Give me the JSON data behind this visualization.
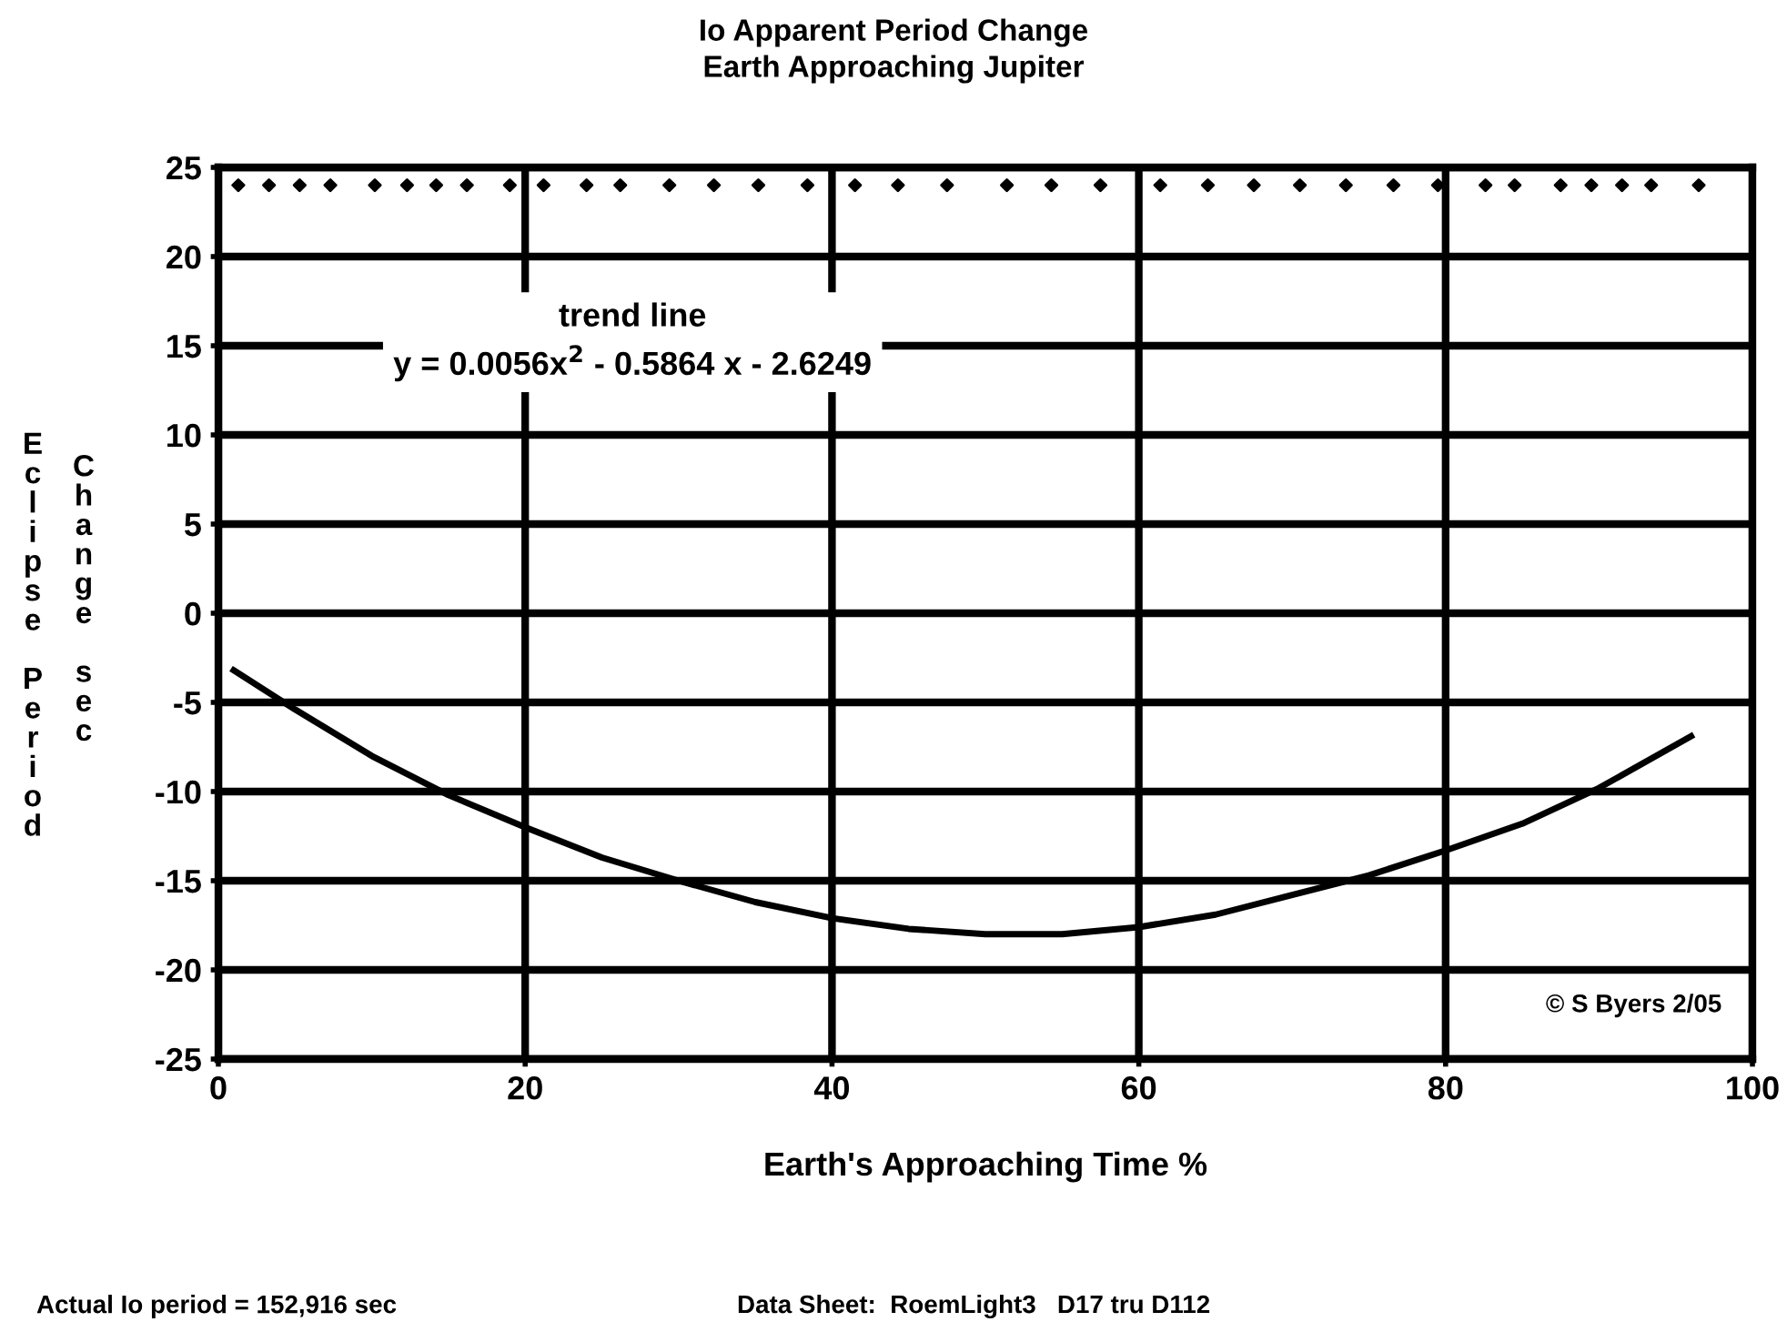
{
  "chart_data": {
    "type": "scatter",
    "title": "Io Apparent Period Change",
    "subtitle": "Earth Approaching Jupiter",
    "xlabel": "Earth's Approaching Time %",
    "ylabel": "Eclipse Period\nChange sec",
    "series": [
      {
        "color": "#000000",
        "marker": "diamond",
        "x": [
          1.3,
          3.3,
          5.3,
          7.3,
          10.2,
          12.3,
          14.2,
          16.2,
          19.0,
          21.2,
          24.0,
          26.2,
          29.4,
          32.3,
          35.2,
          38.4,
          41.5,
          44.3,
          47.5,
          51.4,
          54.3,
          57.5,
          61.4,
          64.5,
          67.5,
          70.5,
          73.5,
          76.6,
          79.5,
          82.6,
          84.5,
          87.5,
          89.5,
          91.5,
          93.4,
          96.5
        ],
        "values": [
          24,
          24,
          24,
          24,
          24,
          24,
          24,
          24,
          24,
          24,
          24,
          24,
          24,
          24,
          24,
          24,
          24,
          24,
          24,
          24,
          24,
          24,
          24,
          24,
          24,
          24,
          24,
          24,
          24,
          24,
          24,
          24,
          24,
          24,
          24,
          24
        ]
      },
      {
        "type": "line",
        "color": "#000000",
        "marker": "none",
        "line_style": "solid",
        "x": [
          1,
          5,
          10,
          15,
          20,
          25,
          30,
          35,
          40,
          45,
          50,
          55,
          60,
          65,
          70,
          75,
          80,
          85,
          90,
          96
        ],
        "values": [
          -3.2,
          -5.4,
          -8.0,
          -10.2,
          -12.0,
          -13.7,
          -15.0,
          -16.2,
          -17.1,
          -17.7,
          -18.0,
          -18.0,
          -17.6,
          -16.9,
          -15.8,
          -14.7,
          -13.3,
          -11.8,
          -9.8,
          -6.9
        ]
      }
    ],
    "xlim": [
      0,
      100
    ],
    "xticks": [
      0,
      20,
      40,
      60,
      80,
      100
    ],
    "ylim": [
      -25,
      25
    ],
    "yticks": [
      -25,
      -20,
      -15,
      -10,
      -5,
      0,
      5,
      10,
      15,
      20,
      25
    ],
    "grid": true,
    "annotations": [
      "trend line\ny = 0.0056x$^{2}$ - 0.5864 x - 2.6249",
      "© S Byers 2/05",
      "Actual Io period = 152,916 sec",
      "Data Sheet:  RoemLight3   D17 tru D112"
    ]
  }
}
